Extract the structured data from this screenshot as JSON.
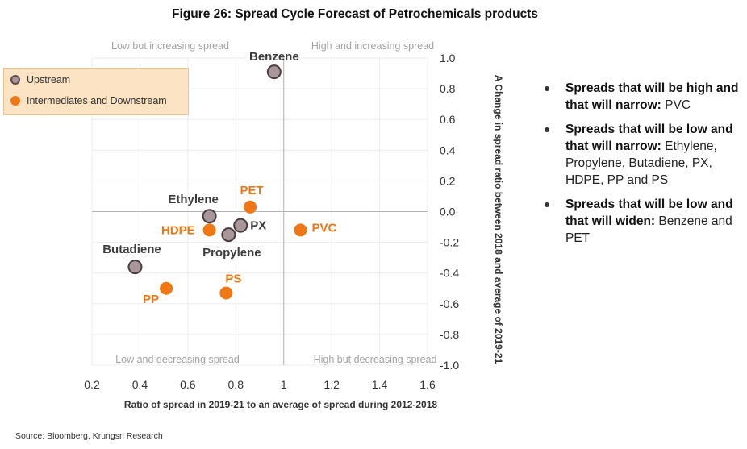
{
  "title": "Figure 26: Spread Cycle Forecast of Petrochemicals products",
  "source": "Source: Bloomberg, Krungsri Research",
  "legend": {
    "upstream": "Upstream",
    "downstream": "Intermediates and Downstream"
  },
  "bullets": [
    {
      "bold": "Spreads that will be high and that will narrow: ",
      "text": "PVC"
    },
    {
      "bold": "Spreads that will be low and that will narrow: ",
      "text": "Ethylene, Propylene, Butadiene, PX, HDPE, PP and PS"
    },
    {
      "bold": "Spreads that will be low and that will widen: ",
      "text": "Benzene and PET"
    }
  ],
  "chart_data": {
    "type": "scatter",
    "xlabel": "Ratio of spread in 2019-21 to an average of spread during 2012-2018",
    "ylabel": "A Change in spread ratio between 2018 and average of 2019-21",
    "xlim": [
      0.2,
      1.6
    ],
    "ylim": [
      -1.0,
      1.0
    ],
    "x_ticks": [
      "0.2",
      "0.4",
      "0.6",
      "0.8",
      "1",
      "1.2",
      "1.4",
      "1.6"
    ],
    "y_ticks": [
      "1.0",
      "0.8",
      "0.6",
      "0.4",
      "0.2",
      "0.0",
      "-0.2",
      "-0.4",
      "-0.6",
      "-0.8",
      "-1.0"
    ],
    "grid": true,
    "quadrant_labels": {
      "top_left": "Low but increasing spread",
      "top_right": "High and increasing spread",
      "bottom_left": "Low and decreasing spread",
      "bottom_right": "High but decreasing spread"
    },
    "colors": {
      "upstream": "#a8969b",
      "downstream": "#f07814"
    },
    "series": [
      {
        "name": "Upstream",
        "points": [
          {
            "label": "Benzene",
            "x": 0.96,
            "y": 0.91
          },
          {
            "label": "Ethylene",
            "x": 0.69,
            "y": -0.03
          },
          {
            "label": "PX",
            "x": 0.82,
            "y": -0.09
          },
          {
            "label": "Propylene",
            "x": 0.77,
            "y": -0.15
          },
          {
            "label": "Butadiene",
            "x": 0.38,
            "y": -0.36
          }
        ]
      },
      {
        "name": "Intermediates and Downstream",
        "points": [
          {
            "label": "PET",
            "x": 0.86,
            "y": 0.03
          },
          {
            "label": "HDPE",
            "x": 0.69,
            "y": -0.12
          },
          {
            "label": "PVC",
            "x": 1.07,
            "y": -0.12
          },
          {
            "label": "PS",
            "x": 0.76,
            "y": -0.53
          },
          {
            "label": "PP",
            "x": 0.51,
            "y": -0.5
          }
        ]
      }
    ]
  }
}
